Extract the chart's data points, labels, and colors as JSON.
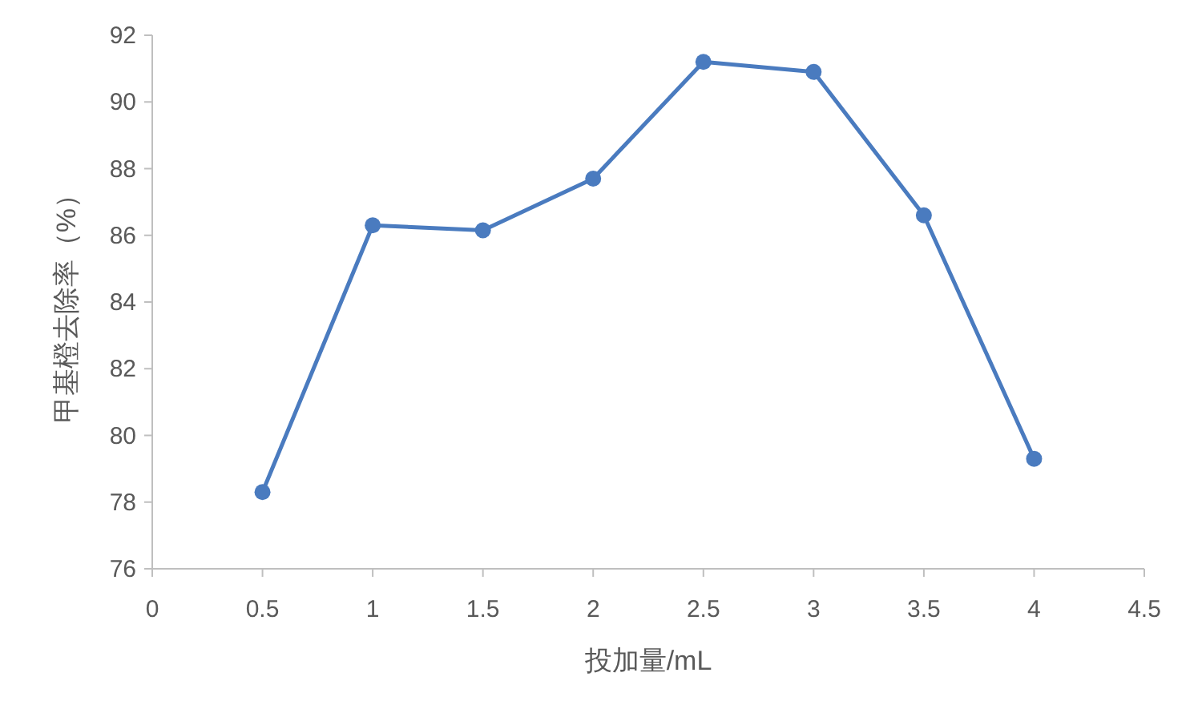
{
  "chart_data": {
    "type": "line",
    "xlabel": "投加量/mL",
    "ylabel": "甲基橙去除率（%）",
    "x": [
      0.5,
      1,
      1.5,
      2,
      2.5,
      3,
      3.5,
      4
    ],
    "values": [
      78.3,
      86.3,
      86.15,
      87.7,
      91.2,
      90.9,
      86.6,
      79.3
    ],
    "color": "#4a7bbf",
    "marker": "circle",
    "line_style": "solid",
    "xlim": [
      0,
      4.5
    ],
    "ylim": [
      76,
      92
    ],
    "xticks": [
      0,
      0.5,
      1,
      1.5,
      2,
      2.5,
      3,
      3.5,
      4,
      4.5
    ],
    "yticks": [
      76,
      78,
      80,
      82,
      84,
      86,
      88,
      90,
      92
    ]
  }
}
